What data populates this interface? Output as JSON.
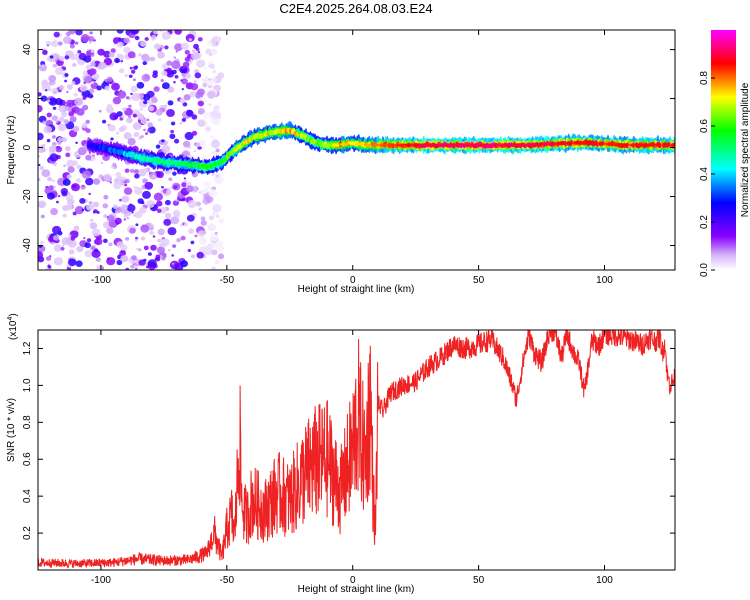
{
  "title": "C2E4.2025.264.08.03.E24",
  "chart_data": [
    {
      "type": "heatmap",
      "title": "C2E4.2025.264.08.03.E24",
      "xlabel": "Height of straight line (km)",
      "ylabel": "Frequency (Hz)",
      "xlim": [
        -125,
        128
      ],
      "ylim": [
        -50,
        48
      ],
      "xticks": [
        -100,
        -50,
        0,
        50,
        100
      ],
      "yticks": [
        -40,
        -20,
        0,
        20,
        40
      ],
      "colorbar": {
        "label": "Normalized spectral amplitude",
        "range": [
          0.0,
          1.0
        ],
        "ticks": [
          0.0,
          0.2,
          0.4,
          0.6,
          0.8
        ],
        "colors": [
          "#ffffff",
          "#d8b8f8",
          "#8800ff",
          "#0000ff",
          "#00ffff",
          "#00ff00",
          "#ffff00",
          "#ff0000",
          "#ff00ff"
        ]
      },
      "ridge": {
        "description": "dominant frequency ridge vs height",
        "x": [
          -105,
          -95,
          -85,
          -75,
          -65,
          -58,
          -52,
          -47,
          -40,
          -33,
          -25,
          -20,
          -15,
          -10,
          -5,
          0,
          5,
          10,
          20,
          30,
          50,
          70,
          90,
          110,
          128
        ],
        "freq": [
          1,
          -1,
          -4,
          -6,
          -7,
          -8,
          -6,
          -1,
          4,
          6,
          7,
          5,
          2,
          1,
          1,
          2,
          1,
          1,
          1,
          1,
          1,
          1,
          2,
          1,
          1
        ],
        "amplitude": [
          0.25,
          0.35,
          0.5,
          0.55,
          0.55,
          0.6,
          0.6,
          0.7,
          0.75,
          0.75,
          0.8,
          0.7,
          0.65,
          0.7,
          0.8,
          0.75,
          0.8,
          0.85,
          0.9,
          0.95,
          0.95,
          0.95,
          0.9,
          0.9,
          0.9
        ]
      },
      "noise_region_x": [
        -125,
        -60
      ]
    },
    {
      "type": "line",
      "xlabel": "Height of straight line (km)",
      "ylabel": "SNR (10 * v/v)",
      "scale_label": "(x10",
      "scale_exp": "4",
      "xlim": [
        -125,
        128
      ],
      "ylim": [
        0,
        13000
      ],
      "xticks": [
        -100,
        -50,
        0,
        50,
        100
      ],
      "yticks": [
        2000,
        4000,
        6000,
        8000,
        10000,
        12000
      ],
      "ytick_labels": [
        "0.2",
        "0.4",
        "0.6",
        "0.8",
        "1.0",
        "1.2"
      ],
      "color": "#ee2222",
      "series": [
        {
          "name": "SNR",
          "x": [
            -125,
            -110,
            -95,
            -85,
            -75,
            -65,
            -58,
            -55,
            -52,
            -50,
            -48,
            -47,
            -46,
            -45,
            -44,
            -42,
            -40,
            -35,
            -30,
            -25,
            -20,
            -15,
            -10,
            -5,
            0,
            2,
            5,
            7,
            8,
            9,
            10,
            12,
            15,
            20,
            25,
            30,
            35,
            40,
            45,
            50,
            55,
            60,
            63,
            65,
            68,
            70,
            72,
            75,
            78,
            80,
            83,
            85,
            88,
            90,
            92,
            95,
            98,
            100,
            105,
            110,
            115,
            118,
            120,
            122,
            123,
            124,
            125,
            126,
            128
          ],
          "y": [
            400,
            350,
            400,
            600,
            500,
            550,
            900,
            2000,
            700,
            2200,
            3000,
            1800,
            4200,
            7600,
            3500,
            2800,
            3800,
            3200,
            4200,
            3800,
            5000,
            5800,
            6000,
            4200,
            6500,
            8400,
            5800,
            9400,
            4500,
            2000,
            9000,
            8600,
            9600,
            10000,
            10200,
            11000,
            11500,
            12200,
            12000,
            12200,
            12500,
            11400,
            10200,
            9200,
            11500,
            12800,
            11800,
            11200,
            12900,
            13000,
            11500,
            12800,
            11700,
            11200,
            9600,
            12400,
            12200,
            12800,
            12700,
            12500,
            12200,
            12600,
            12400,
            12600,
            11800,
            12300,
            10500,
            10000,
            10400
          ]
        }
      ]
    }
  ]
}
